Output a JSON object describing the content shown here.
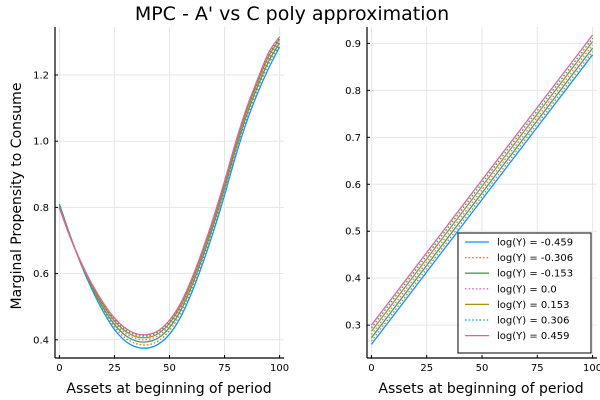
{
  "title": "MPC - A' vs C poly approximation",
  "colors": [
    "#009AFA",
    "#E36F47",
    "#3EA44E",
    "#C271D2",
    "#AC8E18",
    "#00A9AD",
    "#ED5E93"
  ],
  "chart_data": [
    {
      "type": "line",
      "xlabel": "Assets at beginning of period",
      "ylabel": "Marginal Propensity to Consume",
      "xlim": [
        -2,
        102
      ],
      "ylim": [
        0.345,
        1.345
      ],
      "xticks": [
        "0",
        "25",
        "50",
        "75",
        "100"
      ],
      "xtick_values": [
        0,
        25,
        50,
        75,
        100
      ],
      "yticks": [
        "0.4",
        "0.6",
        "0.8",
        "1.0",
        "1.2"
      ],
      "ytick_values": [
        0.4,
        0.6,
        0.8,
        1.0,
        1.2
      ],
      "grid": true,
      "legend": "none",
      "x": [
        0,
        5,
        10,
        15,
        20,
        25,
        30,
        35,
        40,
        45,
        50,
        55,
        60,
        65,
        70,
        75,
        80,
        85,
        90,
        95,
        100
      ],
      "series": [
        {
          "name": "log(Y) = -0.459",
          "style": "solid",
          "values": [
            0.81,
            0.713,
            0.625,
            0.549,
            0.484,
            0.431,
            0.396,
            0.378,
            0.375,
            0.387,
            0.417,
            0.468,
            0.541,
            0.629,
            0.728,
            0.837,
            0.954,
            1.058,
            1.145,
            1.22,
            1.285
          ]
        },
        {
          "name": "log(Y) = -0.306",
          "style": "dotted",
          "values": [
            0.807,
            0.712,
            0.627,
            0.553,
            0.49,
            0.439,
            0.405,
            0.388,
            0.385,
            0.397,
            0.428,
            0.479,
            0.552,
            0.64,
            0.739,
            0.848,
            0.965,
            1.069,
            1.156,
            1.232,
            1.291
          ]
        },
        {
          "name": "log(Y) = -0.153",
          "style": "solid",
          "values": [
            0.805,
            0.711,
            0.628,
            0.556,
            0.495,
            0.446,
            0.413,
            0.396,
            0.394,
            0.406,
            0.437,
            0.488,
            0.561,
            0.649,
            0.748,
            0.857,
            0.974,
            1.078,
            1.165,
            1.241,
            1.297
          ]
        },
        {
          "name": "log(Y) = 0.0",
          "style": "dotted",
          "values": [
            0.802,
            0.71,
            0.629,
            0.559,
            0.5,
            0.452,
            0.42,
            0.403,
            0.401,
            0.413,
            0.444,
            0.495,
            0.568,
            0.656,
            0.755,
            0.864,
            0.981,
            1.085,
            1.172,
            1.249,
            1.303
          ]
        },
        {
          "name": "log(Y) = 0.153",
          "style": "solid",
          "values": [
            0.8,
            0.709,
            0.63,
            0.562,
            0.504,
            0.457,
            0.426,
            0.409,
            0.407,
            0.419,
            0.45,
            0.501,
            0.574,
            0.662,
            0.761,
            0.87,
            0.987,
            1.091,
            1.178,
            1.256,
            1.308
          ]
        },
        {
          "name": "log(Y) = 0.306",
          "style": "dotted",
          "values": [
            0.799,
            0.708,
            0.631,
            0.564,
            0.508,
            0.462,
            0.431,
            0.414,
            0.412,
            0.424,
            0.455,
            0.506,
            0.579,
            0.667,
            0.766,
            0.875,
            0.992,
            1.096,
            1.183,
            1.262,
            1.312
          ]
        },
        {
          "name": "log(Y) = 0.459",
          "style": "solid",
          "values": [
            0.798,
            0.708,
            0.632,
            0.566,
            0.511,
            0.466,
            0.435,
            0.418,
            0.416,
            0.428,
            0.459,
            0.51,
            0.583,
            0.671,
            0.77,
            0.879,
            0.996,
            1.1,
            1.187,
            1.267,
            1.316
          ]
        }
      ]
    },
    {
      "type": "line",
      "xlabel": "Assets at beginning of period",
      "ylabel": "",
      "xlim": [
        -2,
        102
      ],
      "ylim": [
        0.23,
        0.935
      ],
      "xticks": [
        "0",
        "25",
        "50",
        "75",
        "100"
      ],
      "xtick_values": [
        0,
        25,
        50,
        75,
        100
      ],
      "yticks": [
        "0.3",
        "0.4",
        "0.5",
        "0.6",
        "0.7",
        "0.8",
        "0.9"
      ],
      "ytick_values": [
        0.3,
        0.4,
        0.5,
        0.6,
        0.7,
        0.8,
        0.9
      ],
      "grid": true,
      "legend": "bottom-right",
      "x": [
        0,
        100
      ],
      "series": [
        {
          "name": "log(Y) = -0.459",
          "style": "solid",
          "values": [
            0.259,
            0.876
          ]
        },
        {
          "name": "log(Y) = -0.306",
          "style": "dotted",
          "values": [
            0.266,
            0.883
          ]
        },
        {
          "name": "log(Y) = -0.153",
          "style": "solid",
          "values": [
            0.273,
            0.89
          ]
        },
        {
          "name": "log(Y) = 0.0",
          "style": "dotted",
          "values": [
            0.28,
            0.897
          ]
        },
        {
          "name": "log(Y) = 0.153",
          "style": "solid",
          "values": [
            0.287,
            0.904
          ]
        },
        {
          "name": "log(Y) = 0.306",
          "style": "dotted",
          "values": [
            0.294,
            0.911
          ]
        },
        {
          "name": "log(Y) = 0.459",
          "style": "solid",
          "values": [
            0.3,
            0.918
          ]
        }
      ]
    }
  ]
}
